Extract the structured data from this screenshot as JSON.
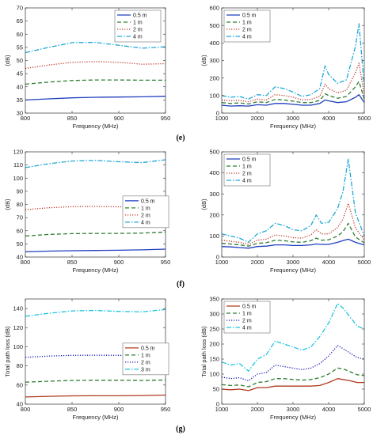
{
  "figure": {
    "captions": [
      "(e)",
      "(f)",
      "(g)"
    ]
  },
  "chart_data": [
    {
      "type": "line",
      "panel": "e-left",
      "xlabel": "Frequency (MHz)",
      "ylabel": "(dB)",
      "xlim": [
        800,
        950
      ],
      "ylim": [
        30,
        70
      ],
      "xticks": [
        800,
        850,
        900,
        950
      ],
      "yticks": [
        30,
        35,
        40,
        45,
        50,
        55,
        60,
        65,
        70
      ],
      "legend_position": "top-right",
      "x": [
        800,
        825,
        850,
        875,
        900,
        925,
        950
      ],
      "series": [
        {
          "name": "0.5 m",
          "color": "#1f3fbf",
          "style": "solid",
          "values": [
            35,
            35.4,
            35.8,
            36,
            36.1,
            36.2,
            36.4
          ]
        },
        {
          "name": "1 m",
          "color": "#2e7d32",
          "style": "dashed",
          "values": [
            41,
            41.8,
            42.4,
            42.6,
            42.6,
            42.5,
            42.5
          ]
        },
        {
          "name": "2 m",
          "color": "#c0392b",
          "style": "dotted",
          "values": [
            47,
            48.3,
            49.3,
            49.6,
            49.3,
            48.6,
            48.8
          ]
        },
        {
          "name": "4 m",
          "color": "#1fa8d6",
          "style": "dashdot",
          "values": [
            53,
            55,
            56.8,
            56.9,
            55.8,
            54.7,
            55.2
          ]
        }
      ]
    },
    {
      "type": "line",
      "panel": "e-right",
      "xlabel": "Frequency (MHz)",
      "ylabel": "(dB)",
      "xlim": [
        1000,
        5000
      ],
      "ylim": [
        0,
        600
      ],
      "xticks": [
        1000,
        2000,
        3000,
        4000,
        5000
      ],
      "yticks": [
        0,
        100,
        200,
        300,
        400,
        500,
        600
      ],
      "legend_position": "top-left",
      "x": [
        1000,
        1250,
        1500,
        1750,
        2000,
        2250,
        2500,
        2750,
        3000,
        3250,
        3500,
        3750,
        3900,
        4000,
        4250,
        4500,
        4750,
        4850,
        5000
      ],
      "series": [
        {
          "name": "0.5 m",
          "color": "#1f3fbf",
          "style": "solid",
          "values": [
            45,
            40,
            42,
            40,
            48,
            45,
            55,
            55,
            50,
            45,
            45,
            55,
            75,
            70,
            60,
            65,
            90,
            105,
            60
          ]
        },
        {
          "name": "1 m",
          "color": "#2e7d32",
          "style": "dashed",
          "values": [
            60,
            55,
            58,
            52,
            65,
            60,
            78,
            75,
            68,
            60,
            60,
            72,
            110,
            100,
            85,
            95,
            150,
            180,
            80
          ]
        },
        {
          "name": "2 m",
          "color": "#c0392b",
          "style": "dotted",
          "values": [
            75,
            70,
            72,
            65,
            80,
            75,
            105,
            100,
            90,
            75,
            78,
            95,
            165,
            140,
            115,
            130,
            230,
            285,
            100
          ]
        },
        {
          "name": "4 m",
          "color": "#1fa8d6",
          "style": "dashdot",
          "values": [
            100,
            90,
            95,
            80,
            105,
            100,
            150,
            140,
            120,
            95,
            105,
            140,
            270,
            220,
            170,
            190,
            380,
            510,
            150
          ]
        }
      ]
    },
    {
      "type": "line",
      "panel": "f-left",
      "xlabel": "Frequency (MHz)",
      "ylabel": "(dB)",
      "xlim": [
        800,
        950
      ],
      "ylim": [
        40,
        120
      ],
      "xticks": [
        800,
        850,
        900,
        950
      ],
      "yticks": [
        40,
        50,
        60,
        70,
        80,
        90,
        100,
        110,
        120
      ],
      "legend_position": "right",
      "x": [
        800,
        825,
        850,
        875,
        900,
        925,
        950
      ],
      "series": [
        {
          "name": "0.5 m",
          "color": "#1f3fbf",
          "style": "solid",
          "values": [
            44,
            44.5,
            44.8,
            45,
            45.2,
            45.5,
            46
          ]
        },
        {
          "name": "1 m",
          "color": "#2e7d32",
          "style": "dashed",
          "values": [
            56,
            57.2,
            57.8,
            58,
            58,
            58.2,
            59
          ]
        },
        {
          "name": "2 m",
          "color": "#c0392b",
          "style": "dotted",
          "values": [
            76,
            77.5,
            78.3,
            78.5,
            78.2,
            78.3,
            79.5
          ]
        },
        {
          "name": "4 m",
          "color": "#1fa8d6",
          "style": "dashdot",
          "values": [
            108,
            111,
            113,
            113.5,
            112.5,
            111.8,
            114
          ]
        }
      ]
    },
    {
      "type": "line",
      "panel": "f-right",
      "xlabel": "Frequency (MHz)",
      "ylabel": "(dB)",
      "xlim": [
        1000,
        5000
      ],
      "ylim": [
        0,
        500
      ],
      "xticks": [
        1000,
        2000,
        3000,
        4000,
        5000
      ],
      "yticks": [
        0,
        100,
        200,
        300,
        400,
        500
      ],
      "legend_position": "top-left",
      "x": [
        1000,
        1250,
        1500,
        1750,
        2000,
        2250,
        2500,
        2750,
        3000,
        3250,
        3500,
        3650,
        3800,
        4000,
        4250,
        4400,
        4550,
        4750,
        5000
      ],
      "series": [
        {
          "name": "0.5 m",
          "color": "#1f3fbf",
          "style": "solid",
          "values": [
            50,
            48,
            45,
            42,
            50,
            52,
            58,
            58,
            55,
            55,
            58,
            62,
            60,
            60,
            70,
            78,
            85,
            70,
            58
          ]
        },
        {
          "name": "1 m",
          "color": "#2e7d32",
          "style": "dashed",
          "values": [
            65,
            62,
            58,
            52,
            65,
            68,
            80,
            78,
            72,
            70,
            78,
            90,
            80,
            82,
            100,
            120,
            160,
            95,
            68
          ]
        },
        {
          "name": "2 m",
          "color": "#c0392b",
          "style": "dotted",
          "values": [
            80,
            75,
            70,
            60,
            80,
            85,
            105,
            100,
            92,
            90,
            105,
            130,
            110,
            110,
            140,
            180,
            255,
            140,
            80
          ]
        },
        {
          "name": "4 m",
          "color": "#1fa8d6",
          "style": "dashdot",
          "values": [
            110,
            100,
            90,
            70,
            110,
            125,
            160,
            150,
            130,
            125,
            150,
            200,
            160,
            165,
            230,
            310,
            465,
            210,
            100
          ]
        }
      ]
    },
    {
      "type": "line",
      "panel": "g-left",
      "xlabel": "Frequency (MHz)",
      "ylabel": "Total path loss (dB)",
      "xlim": [
        800,
        950
      ],
      "ylim": [
        40,
        150
      ],
      "xticks": [
        800,
        850,
        900,
        950
      ],
      "yticks": [
        40,
        60,
        80,
        100,
        120,
        140
      ],
      "legend_position": "right",
      "x": [
        800,
        825,
        850,
        875,
        900,
        925,
        950
      ],
      "series": [
        {
          "name": "0.5 m",
          "color": "#b03a1f",
          "style": "solid",
          "values": [
            47.5,
            48.2,
            48.7,
            48.8,
            48.8,
            49,
            49.5
          ]
        },
        {
          "name": "1 m",
          "color": "#2e7d32",
          "style": "dashed",
          "values": [
            63,
            64,
            64.8,
            65,
            65,
            64.8,
            65.2
          ]
        },
        {
          "name": "2 m",
          "color": "#1a1ab5",
          "style": "dotted",
          "values": [
            89,
            90.3,
            91,
            91.2,
            91,
            90.8,
            92
          ]
        },
        {
          "name": "3 m",
          "color": "#1fc4e0",
          "style": "dashdot",
          "values": [
            132,
            135,
            137.5,
            138,
            137,
            136.5,
            139
          ]
        }
      ]
    },
    {
      "type": "line",
      "panel": "g-right",
      "xlabel": "Frequency (MHz)",
      "ylabel": "Total path loss (dB)",
      "xlim": [
        1000,
        5000
      ],
      "ylim": [
        0,
        350
      ],
      "xticks": [
        1000,
        2000,
        3000,
        4000,
        5000
      ],
      "yticks": [
        0,
        50,
        100,
        150,
        200,
        250,
        300,
        350
      ],
      "legend_position": "top-left",
      "x": [
        1000,
        1250,
        1500,
        1750,
        2000,
        2250,
        2500,
        2750,
        3000,
        3250,
        3500,
        3750,
        4000,
        4250,
        4400,
        4600,
        4800,
        5000
      ],
      "series": [
        {
          "name": "0.5 m",
          "color": "#b03a1f",
          "style": "solid",
          "values": [
            50,
            48,
            50,
            45,
            55,
            55,
            60,
            60,
            60,
            60,
            60,
            62,
            72,
            85,
            82,
            78,
            72,
            72
          ]
        },
        {
          "name": "1 m",
          "color": "#2e7d32",
          "style": "dashed",
          "values": [
            65,
            62,
            64,
            58,
            72,
            75,
            85,
            85,
            82,
            80,
            82,
            88,
            100,
            120,
            118,
            108,
            98,
            95
          ]
        },
        {
          "name": "2 m",
          "color": "#1a1ab5",
          "style": "dotted",
          "values": [
            90,
            85,
            88,
            78,
            100,
            105,
            130,
            125,
            120,
            115,
            120,
            135,
            160,
            195,
            185,
            170,
            155,
            150
          ]
        },
        {
          "name": "4 m",
          "color": "#1fc4e0",
          "style": "dashdot",
          "values": [
            140,
            130,
            135,
            110,
            150,
            165,
            210,
            200,
            190,
            180,
            190,
            225,
            270,
            335,
            320,
            290,
            260,
            250
          ]
        }
      ]
    }
  ]
}
